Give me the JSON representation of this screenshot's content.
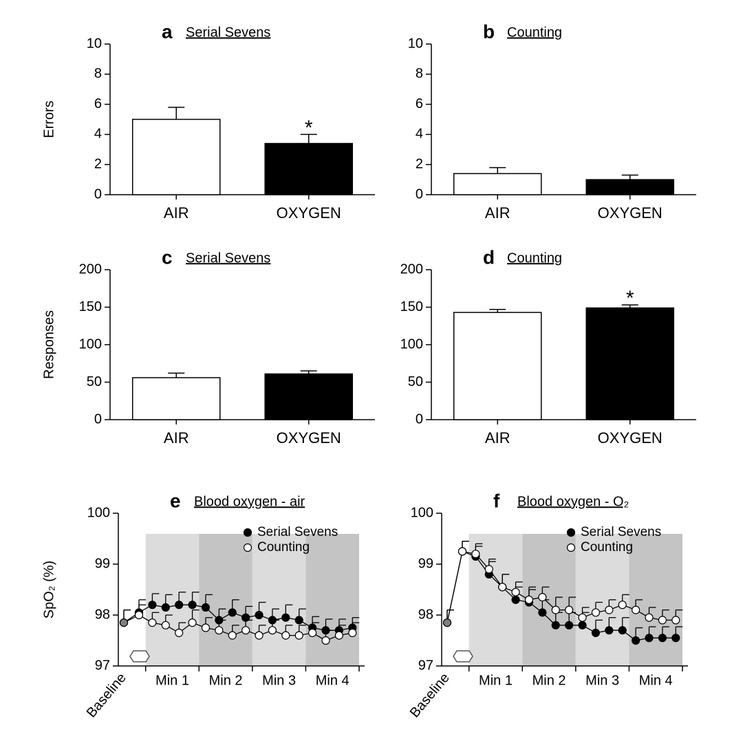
{
  "chart_data": [
    {
      "type": "bar",
      "label": "a",
      "title": "Serial Sevens",
      "y_label": "Errors",
      "categories": [
        "AIR",
        "OXYGEN"
      ],
      "values": [
        5.0,
        3.4
      ],
      "errors": [
        0.8,
        0.6
      ],
      "colors": [
        "#ffffff",
        "#000000"
      ],
      "ylim": [
        0,
        10
      ],
      "yticks": [
        0,
        2,
        4,
        6,
        8,
        10
      ],
      "annotations": [
        {
          "text": "*",
          "category": 1
        }
      ]
    },
    {
      "type": "bar",
      "label": "b",
      "title": "Counting",
      "categories": [
        "AIR",
        "OXYGEN"
      ],
      "values": [
        1.4,
        1.0
      ],
      "errors": [
        0.4,
        0.3
      ],
      "colors": [
        "#ffffff",
        "#000000"
      ],
      "ylim": [
        0,
        10
      ],
      "yticks": [
        0,
        2,
        4,
        6,
        8,
        10
      ]
    },
    {
      "type": "bar",
      "label": "c",
      "title": "Serial Sevens",
      "y_label": "Responses",
      "categories": [
        "AIR",
        "OXYGEN"
      ],
      "values": [
        56,
        61
      ],
      "errors": [
        6,
        4
      ],
      "colors": [
        "#ffffff",
        "#000000"
      ],
      "ylim": [
        0,
        200
      ],
      "yticks": [
        0,
        50,
        100,
        150,
        200
      ]
    },
    {
      "type": "bar",
      "label": "d",
      "title": "Counting",
      "categories": [
        "AIR",
        "OXYGEN"
      ],
      "values": [
        143,
        149
      ],
      "errors": [
        4,
        4
      ],
      "colors": [
        "#ffffff",
        "#000000"
      ],
      "ylim": [
        0,
        200
      ],
      "yticks": [
        0,
        50,
        100,
        150,
        200
      ],
      "annotations": [
        {
          "text": "*",
          "category": 1
        }
      ]
    },
    {
      "type": "line",
      "label": "e",
      "title": "Blood oxygen - air",
      "y_label": "SpO₂ (%)",
      "categories": [
        "Baseline",
        null,
        null,
        null,
        null,
        null,
        null,
        null,
        null,
        null,
        null,
        null,
        null,
        null,
        null,
        null,
        null,
        null
      ],
      "ylim": [
        97,
        100
      ],
      "yticks": [
        97,
        98,
        99,
        100
      ],
      "legend": "upper right",
      "baseline_color": "#808080",
      "regions": [
        {
          "label": "Min 1",
          "from": 1.5,
          "to": 5.5,
          "color": "#dcdcdc"
        },
        {
          "label": "Min 2",
          "from": 5.5,
          "to": 9.5,
          "color": "#c4c4c4"
        },
        {
          "label": "Min 3",
          "from": 9.5,
          "to": 13.5,
          "color": "#dcdcdc"
        },
        {
          "label": "Min 4",
          "from": 13.5,
          "to": 17.5,
          "color": "#c4c4c4"
        }
      ],
      "series": [
        {
          "name": "Serial Sevens",
          "color": "#000000",
          "values": [
            97.85,
            98.05,
            98.2,
            98.15,
            98.2,
            98.2,
            98.15,
            97.9,
            98.05,
            97.95,
            98.0,
            97.9,
            97.95,
            97.9,
            97.75,
            97.7,
            97.7,
            97.75
          ],
          "errors": [
            0.25,
            0.25,
            0.22,
            0.25,
            0.25,
            0.25,
            0.25,
            0.22,
            0.25,
            0.22,
            0.25,
            0.22,
            0.25,
            0.22,
            0.22,
            0.22,
            0.22,
            0.2
          ]
        },
        {
          "name": "Counting",
          "color": "#ffffff",
          "values": [
            97.85,
            98.0,
            97.85,
            97.8,
            97.65,
            97.85,
            97.75,
            97.7,
            97.6,
            97.7,
            97.6,
            97.7,
            97.6,
            97.6,
            97.65,
            97.5,
            97.6,
            97.65
          ],
          "errors": [
            0.25,
            0.2,
            0.2,
            0.2,
            0.2,
            0.25,
            0.2,
            0.2,
            0.2,
            0.2,
            0.2,
            0.2,
            0.2,
            0.2,
            0.2,
            0.2,
            0.2,
            0.2
          ]
        }
      ]
    },
    {
      "type": "line",
      "label": "f",
      "title": "Blood oxygen - O₂",
      "categories": [
        "Baseline",
        null,
        null,
        null,
        null,
        null,
        null,
        null,
        null,
        null,
        null,
        null,
        null,
        null,
        null,
        null,
        null,
        null
      ],
      "ylim": [
        97,
        100
      ],
      "yticks": [
        97,
        98,
        99,
        100
      ],
      "legend": "upper right",
      "baseline_color": "#808080",
      "regions": [
        {
          "label": "Min 1",
          "from": 1.5,
          "to": 5.5,
          "color": "#dcdcdc"
        },
        {
          "label": "Min 2",
          "from": 5.5,
          "to": 9.5,
          "color": "#c4c4c4"
        },
        {
          "label": "Min 3",
          "from": 9.5,
          "to": 13.5,
          "color": "#dcdcdc"
        },
        {
          "label": "Min 4",
          "from": 13.5,
          "to": 17.5,
          "color": "#c4c4c4"
        }
      ],
      "series": [
        {
          "name": "Serial Sevens",
          "color": "#000000",
          "values": [
            97.85,
            99.25,
            99.15,
            98.8,
            98.55,
            98.3,
            98.25,
            98.05,
            97.8,
            97.8,
            97.8,
            97.65,
            97.7,
            97.7,
            97.5,
            97.55,
            97.55,
            97.55
          ],
          "errors": [
            0.25,
            0.2,
            0.2,
            0.25,
            0.25,
            0.25,
            0.25,
            0.25,
            0.25,
            0.25,
            0.25,
            0.25,
            0.25,
            0.25,
            0.25,
            0.22,
            0.22,
            0.22
          ]
        },
        {
          "name": "Counting",
          "color": "#ffffff",
          "values": [
            97.85,
            99.25,
            99.2,
            98.9,
            98.55,
            98.45,
            98.3,
            98.35,
            98.1,
            98.1,
            97.95,
            98.05,
            98.1,
            98.2,
            98.1,
            97.95,
            97.9,
            97.9
          ],
          "errors": [
            0.25,
            0.2,
            0.2,
            0.2,
            0.25,
            0.2,
            0.25,
            0.2,
            0.25,
            0.25,
            0.2,
            0.2,
            0.2,
            0.2,
            0.2,
            0.2,
            0.2,
            0.2
          ]
        }
      ]
    }
  ]
}
